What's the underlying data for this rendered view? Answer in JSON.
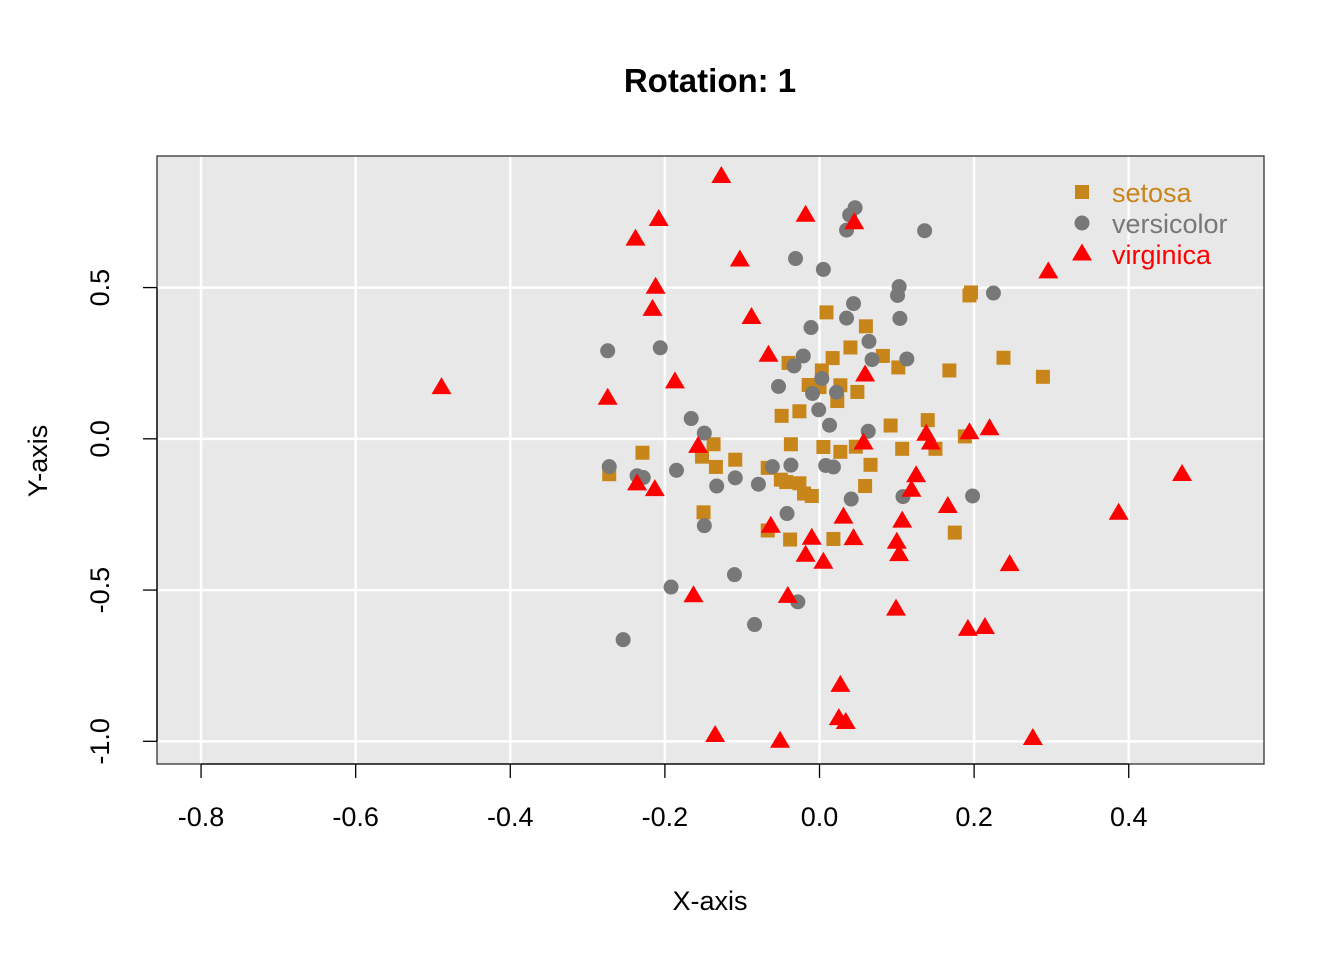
{
  "chart_data": {
    "type": "scatter",
    "title": "Rotation: 1",
    "xlabel": "X-axis",
    "ylabel": "Y-axis",
    "xlim": [
      -0.857,
      0.575
    ],
    "ylim": [
      -1.075,
      0.935
    ],
    "xticks": [
      -0.8,
      -0.6,
      -0.4,
      -0.2,
      0.0,
      0.2,
      0.4
    ],
    "xtick_labels": [
      "-0.8",
      "-0.6",
      "-0.4",
      "-0.2",
      "0.0",
      "0.2",
      "0.4"
    ],
    "yticks": [
      -1.0,
      -0.5,
      0.0,
      0.5
    ],
    "ytick_labels": [
      "-1.0",
      "-0.5",
      "0.0",
      "0.5"
    ],
    "grid": true,
    "background": "#e8e8e8",
    "grid_color": "#ffffff",
    "legend_position": "top-right",
    "series": [
      {
        "name": "setosa",
        "marker": "square",
        "color": "#c8861a",
        "points": [
          [
            -0.272,
            -0.117
          ],
          [
            -0.229,
            -0.046
          ],
          [
            -0.15,
            -0.243
          ],
          [
            -0.152,
            -0.059
          ],
          [
            -0.137,
            -0.018
          ],
          [
            -0.134,
            -0.093
          ],
          [
            -0.109,
            -0.069
          ],
          [
            -0.067,
            -0.096
          ],
          [
            -0.067,
            -0.303
          ],
          [
            -0.049,
            0.076
          ],
          [
            -0.05,
            -0.135
          ],
          [
            -0.043,
            -0.143
          ],
          [
            -0.04,
            0.251
          ],
          [
            -0.037,
            -0.018
          ],
          [
            -0.038,
            -0.333
          ],
          [
            -0.026,
            0.091
          ],
          [
            -0.026,
            -0.147
          ],
          [
            -0.02,
            -0.181
          ],
          [
            -0.014,
            0.178
          ],
          [
            -0.01,
            -0.189
          ],
          [
            0.0,
            0.171
          ],
          [
            0.003,
            0.226
          ],
          [
            0.005,
            -0.027
          ],
          [
            0.009,
            0.418
          ],
          [
            0.017,
            0.267
          ],
          [
            0.018,
            -0.331
          ],
          [
            0.023,
            0.125
          ],
          [
            0.027,
            0.177
          ],
          [
            0.027,
            -0.043
          ],
          [
            0.04,
            0.302
          ],
          [
            0.047,
            -0.026
          ],
          [
            0.049,
            0.155
          ],
          [
            0.06,
            0.372
          ],
          [
            0.059,
            -0.156
          ],
          [
            0.066,
            -0.086
          ],
          [
            0.082,
            0.274
          ],
          [
            0.092,
            0.044
          ],
          [
            0.102,
            0.236
          ],
          [
            0.107,
            -0.033
          ],
          [
            0.14,
            0.062
          ],
          [
            0.15,
            -0.033
          ],
          [
            0.168,
            0.226
          ],
          [
            0.175,
            -0.31
          ],
          [
            0.188,
            0.008
          ],
          [
            0.194,
            0.474
          ],
          [
            0.196,
            0.484
          ],
          [
            0.238,
            0.268
          ],
          [
            0.289,
            0.205
          ]
        ]
      },
      {
        "name": "versicolor",
        "marker": "circle",
        "color": "#787878",
        "points": [
          [
            -0.274,
            0.291
          ],
          [
            -0.272,
            -0.092
          ],
          [
            -0.254,
            -0.664
          ],
          [
            -0.236,
            -0.122
          ],
          [
            -0.228,
            -0.128
          ],
          [
            -0.206,
            0.301
          ],
          [
            -0.192,
            -0.49
          ],
          [
            -0.185,
            -0.104
          ],
          [
            -0.166,
            0.067
          ],
          [
            -0.149,
            0.019
          ],
          [
            -0.149,
            -0.287
          ],
          [
            -0.133,
            -0.156
          ],
          [
            -0.11,
            -0.449
          ],
          [
            -0.109,
            -0.129
          ],
          [
            -0.084,
            -0.614
          ],
          [
            -0.079,
            -0.15
          ],
          [
            -0.061,
            -0.092
          ],
          [
            -0.053,
            0.173
          ],
          [
            -0.042,
            -0.247
          ],
          [
            -0.037,
            -0.087
          ],
          [
            -0.033,
            0.241
          ],
          [
            -0.031,
            0.596
          ],
          [
            -0.028,
            -0.539
          ],
          [
            -0.021,
            0.274
          ],
          [
            -0.011,
            0.368
          ],
          [
            -0.009,
            0.15
          ],
          [
            -0.001,
            0.096
          ],
          [
            0.003,
            0.199
          ],
          [
            0.005,
            0.56
          ],
          [
            0.008,
            -0.088
          ],
          [
            0.013,
            0.045
          ],
          [
            0.018,
            -0.093
          ],
          [
            0.022,
            0.154
          ],
          [
            0.035,
            0.399
          ],
          [
            0.035,
            0.69
          ],
          [
            0.039,
            0.74
          ],
          [
            0.044,
            0.447
          ],
          [
            0.046,
            0.764
          ],
          [
            0.041,
            -0.199
          ],
          [
            0.063,
            0.025
          ],
          [
            0.064,
            0.322
          ],
          [
            0.068,
            0.262
          ],
          [
            0.101,
            0.474
          ],
          [
            0.103,
            0.503
          ],
          [
            0.104,
            0.398
          ],
          [
            0.108,
            -0.191
          ],
          [
            0.113,
            0.264
          ],
          [
            0.136,
            0.688
          ],
          [
            0.198,
            -0.189
          ],
          [
            0.225,
            0.482
          ]
        ]
      },
      {
        "name": "virginica",
        "marker": "triangle",
        "color": "#ff0000",
        "points": [
          [
            -0.489,
            0.169
          ],
          [
            -0.274,
            0.134
          ],
          [
            -0.238,
            0.66
          ],
          [
            -0.236,
            -0.149
          ],
          [
            -0.216,
            0.428
          ],
          [
            -0.213,
            -0.168
          ],
          [
            -0.212,
            0.501
          ],
          [
            -0.208,
            0.725
          ],
          [
            -0.187,
            0.188
          ],
          [
            -0.163,
            -0.519
          ],
          [
            -0.157,
            -0.025
          ],
          [
            -0.135,
            -0.981
          ],
          [
            -0.127,
            0.867
          ],
          [
            -0.103,
            0.591
          ],
          [
            -0.088,
            0.401
          ],
          [
            -0.066,
            0.276
          ],
          [
            -0.063,
            -0.289
          ],
          [
            -0.051,
            -1.0
          ],
          [
            -0.041,
            -0.521
          ],
          [
            -0.018,
            0.739
          ],
          [
            -0.018,
            -0.385
          ],
          [
            -0.01,
            -0.329
          ],
          [
            0.005,
            -0.408
          ],
          [
            0.025,
            -0.925
          ],
          [
            0.027,
            -0.815
          ],
          [
            0.031,
            -0.259
          ],
          [
            0.034,
            -0.938
          ],
          [
            0.044,
            -0.33
          ],
          [
            0.045,
            0.714
          ],
          [
            0.057,
            -0.014
          ],
          [
            0.059,
            0.211
          ],
          [
            0.099,
            -0.563
          ],
          [
            0.1,
            -0.342
          ],
          [
            0.103,
            -0.383
          ],
          [
            0.107,
            -0.272
          ],
          [
            0.119,
            -0.17
          ],
          [
            0.125,
            -0.122
          ],
          [
            0.138,
            0.015
          ],
          [
            0.144,
            -0.014
          ],
          [
            0.166,
            -0.224
          ],
          [
            0.192,
            -0.63
          ],
          [
            0.194,
            0.02
          ],
          [
            0.214,
            -0.624
          ],
          [
            0.22,
            0.033
          ],
          [
            0.246,
            -0.416
          ],
          [
            0.276,
            -0.991
          ],
          [
            0.296,
            0.552
          ],
          [
            0.387,
            -0.246
          ],
          [
            0.469,
            -0.118
          ]
        ]
      }
    ]
  }
}
